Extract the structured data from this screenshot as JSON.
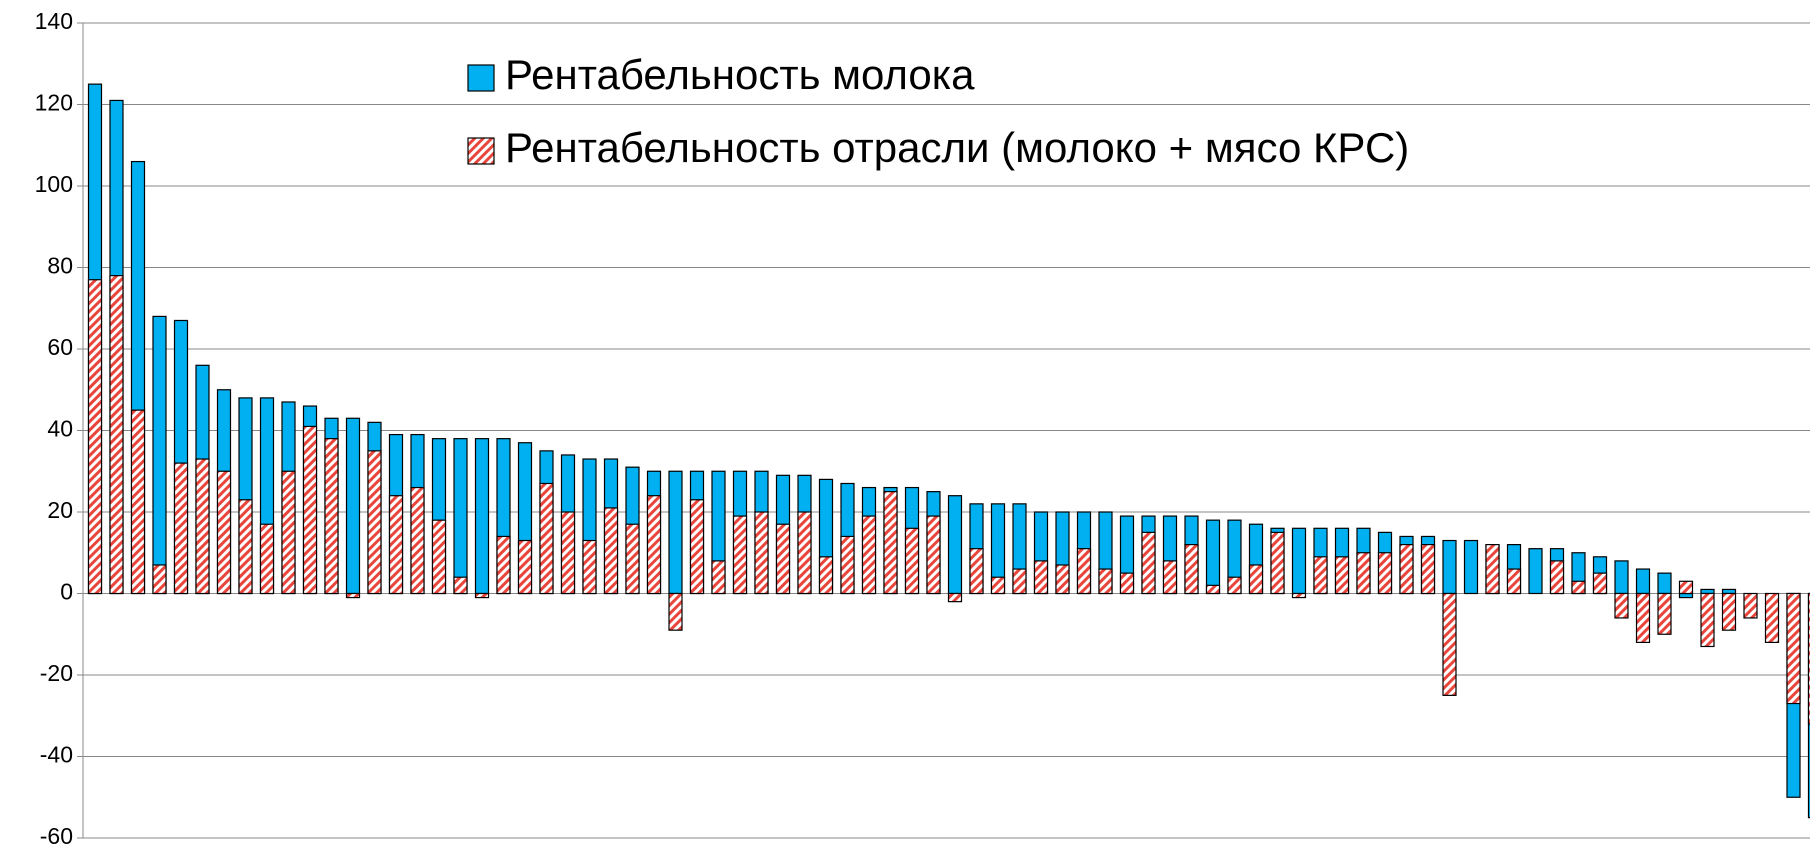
{
  "chart_data": {
    "type": "bar",
    "categories": [
      null,
      null,
      null,
      null,
      null,
      null,
      null,
      null,
      null,
      null,
      null,
      null,
      null,
      null,
      null,
      null,
      null,
      null,
      null,
      null,
      null,
      null,
      null,
      null,
      null,
      null,
      null,
      null,
      null,
      null,
      null,
      null,
      null,
      null,
      null,
      null,
      null,
      null,
      null,
      null,
      null,
      null,
      null,
      null,
      null,
      null,
      null,
      null,
      null,
      null,
      null,
      null,
      null,
      null,
      null,
      null,
      null,
      null,
      null,
      null,
      null,
      null,
      null,
      null,
      null,
      null,
      null,
      null,
      null,
      null,
      null,
      null,
      null,
      null,
      null,
      null,
      null,
      null,
      null,
      null,
      null
    ],
    "series": [
      {
        "name": "Рентабельность молока",
        "color": "#00b0f0",
        "values": [
          125,
          121,
          106,
          68,
          67,
          56,
          50,
          48,
          48,
          47,
          46,
          43,
          43,
          42,
          39,
          39,
          38,
          38,
          38,
          38,
          37,
          35,
          34,
          33,
          33,
          31,
          30,
          30,
          30,
          30,
          30,
          30,
          29,
          29,
          28,
          27,
          26,
          26,
          26,
          25,
          24,
          22,
          22,
          22,
          20,
          20,
          20,
          20,
          19,
          19,
          19,
          19,
          18,
          18,
          17,
          16,
          16,
          16,
          16,
          16,
          15,
          14,
          14,
          13,
          13,
          12,
          12,
          11,
          11,
          10,
          9,
          8,
          6,
          5,
          -1,
          1,
          1,
          0,
          0,
          -50,
          -55
        ]
      },
      {
        "name": "Рентабельность отрасли (молоко + мясо КРС)",
        "color": "#e8463c",
        "values": [
          77,
          78,
          45,
          7,
          32,
          33,
          30,
          23,
          17,
          30,
          41,
          38,
          -1,
          35,
          24,
          26,
          18,
          4,
          -1,
          14,
          13,
          27,
          20,
          13,
          21,
          17,
          24,
          -9,
          23,
          8,
          19,
          20,
          17,
          20,
          9,
          14,
          19,
          25,
          16,
          19,
          -2,
          11,
          4,
          6,
          8,
          7,
          11,
          6,
          5,
          15,
          8,
          12,
          2,
          4,
          7,
          15,
          -1,
          9,
          9,
          10,
          10,
          12,
          12,
          -25,
          0,
          12,
          6,
          0,
          8,
          3,
          5,
          -6,
          -12,
          -10,
          3,
          -13,
          -9,
          -6,
          -12,
          -27,
          -32
        ]
      }
    ],
    "ylim": [
      -60,
      140
    ],
    "yticks": [
      -60,
      -40,
      -20,
      0,
      20,
      40,
      60,
      80,
      100,
      120,
      140
    ],
    "grid": true,
    "legend": "top"
  }
}
